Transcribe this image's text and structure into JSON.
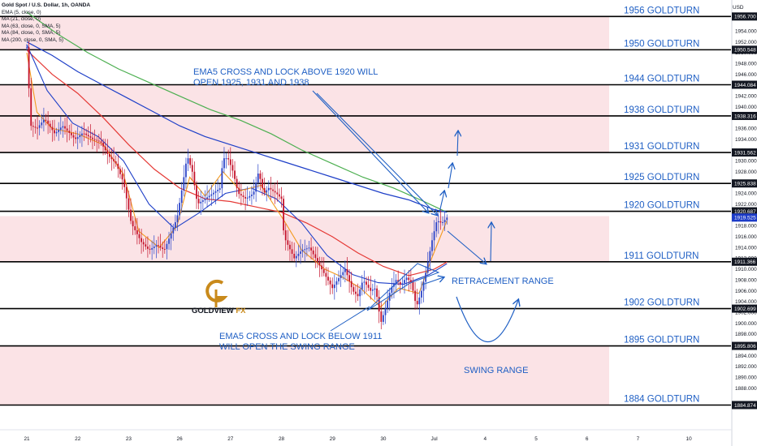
{
  "chart_data": {
    "type": "candlestick",
    "title": "Gold Spot / U.S. Dollar, 1h, OANDA",
    "legend": [
      "Gold Spot / U.S. Dollar, 1h, OANDA",
      "EMA (5, close, 0)",
      "MA (21, close, 0)",
      "MA (63, close, 0, SMA, 5)",
      "MA (84, close, 0, SMA, 5)",
      "MA (200, close, 0, SMA, 5)"
    ],
    "currency": "USD",
    "ylim": [
      1883,
      1957.5
    ],
    "y_ticks": [
      1888,
      1890,
      1892,
      1894,
      1896,
      1898,
      1900,
      1902,
      1904,
      1906,
      1908,
      1910,
      1912,
      1914,
      1916,
      1918,
      1920,
      1922,
      1924,
      1926,
      1928,
      1930,
      1932,
      1934,
      1936,
      1938,
      1940,
      1942,
      1944,
      1946,
      1948,
      1950,
      1952,
      1954
    ],
    "x_ticks": [
      "21",
      "22",
      "23",
      "26",
      "27",
      "28",
      "29",
      "30",
      "Jul",
      "4",
      "5",
      "6",
      "7",
      "10"
    ],
    "x_tick_positions": [
      0.0,
      1.0,
      2.0,
      3.0,
      4.0,
      5.0,
      6.0,
      7.0,
      8.0,
      9.0,
      10.0,
      11.0,
      12.0,
      13.0
    ],
    "levels": [
      {
        "value": 1956.7,
        "label": "1956 GOLDTURN"
      },
      {
        "value": 1950.548,
        "label": "1950 GOLDTURN"
      },
      {
        "value": 1944.084,
        "label": "1944 GOLDTURN"
      },
      {
        "value": 1938.316,
        "label": "1938 GOLDTURN"
      },
      {
        "value": 1931.562,
        "label": "1931 GOLDTURN"
      },
      {
        "value": 1925.838,
        "label": "1925 GOLDTURN"
      },
      {
        "value": 1920.687,
        "label": "1920 GOLDTURN"
      },
      {
        "value": 1911.366,
        "label": "1911 GOLDTURN"
      },
      {
        "value": 1902.699,
        "label": "1902 GOLDTURN"
      },
      {
        "value": 1895.806,
        "label": "1895 GOLDTURN"
      },
      {
        "value": 1884.874,
        "label": "1884 GOLDTURN"
      }
    ],
    "current_price": 1919.525,
    "price_tags": [
      "1956.700",
      "1950.548",
      "1944.084",
      "1938.316",
      "1931.562",
      "1925.838",
      "1920.687",
      "1919.525",
      "1911.366",
      "1902.699",
      "1895.806",
      "1884.874"
    ],
    "zones": [
      [
        1950.548,
        1956.7
      ],
      [
        1931.562,
        1944.084
      ],
      [
        1911.366,
        1919.8
      ],
      [
        1884.874,
        1895.806
      ]
    ],
    "price_path": [
      [
        0.0,
        1951.0
      ],
      [
        0.08,
        1936.5
      ],
      [
        0.2,
        1936.0
      ],
      [
        0.35,
        1937.8
      ],
      [
        0.55,
        1935.0
      ],
      [
        0.7,
        1936.5
      ],
      [
        0.95,
        1934.0
      ],
      [
        1.1,
        1935.2
      ],
      [
        1.3,
        1934.0
      ],
      [
        1.45,
        1933.5
      ],
      [
        1.6,
        1931.0
      ],
      [
        1.75,
        1929.5
      ],
      [
        1.9,
        1926.0
      ],
      [
        2.05,
        1918.5
      ],
      [
        2.25,
        1915.0
      ],
      [
        2.4,
        1913.5
      ],
      [
        2.55,
        1914.5
      ],
      [
        2.7,
        1913.5
      ],
      [
        2.85,
        1917.0
      ],
      [
        2.95,
        1919.5
      ],
      [
        3.05,
        1925.0
      ],
      [
        3.15,
        1931.0
      ],
      [
        3.25,
        1928.0
      ],
      [
        3.35,
        1922.0
      ],
      [
        3.5,
        1923.0
      ],
      [
        3.65,
        1924.0
      ],
      [
        3.8,
        1925.0
      ],
      [
        3.85,
        1930.5
      ],
      [
        3.95,
        1930.5
      ],
      [
        4.05,
        1928.0
      ],
      [
        4.15,
        1924.0
      ],
      [
        4.3,
        1923.0
      ],
      [
        4.45,
        1924.0
      ],
      [
        4.55,
        1928.0
      ],
      [
        4.65,
        1924.0
      ],
      [
        4.75,
        1925.0
      ],
      [
        4.9,
        1924.0
      ],
      [
        5.0,
        1923.0
      ],
      [
        5.05,
        1916.0
      ],
      [
        5.15,
        1914.0
      ],
      [
        5.25,
        1912.0
      ],
      [
        5.4,
        1913.5
      ],
      [
        5.55,
        1914.0
      ],
      [
        5.7,
        1911.5
      ],
      [
        5.85,
        1909.0
      ],
      [
        6.0,
        1906.5
      ],
      [
        6.1,
        1908.0
      ],
      [
        6.25,
        1910.0
      ],
      [
        6.4,
        1906.0
      ],
      [
        6.5,
        1905.0
      ],
      [
        6.6,
        1908.0
      ],
      [
        6.75,
        1906.0
      ],
      [
        6.85,
        1906.5
      ],
      [
        6.95,
        1900.0
      ],
      [
        7.05,
        1903.0
      ],
      [
        7.15,
        1906.5
      ],
      [
        7.25,
        1908.0
      ],
      [
        7.35,
        1907.0
      ],
      [
        7.45,
        1908.5
      ],
      [
        7.55,
        1907.5
      ],
      [
        7.65,
        1903.0
      ],
      [
        7.75,
        1906.0
      ],
      [
        7.85,
        1910.0
      ],
      [
        7.95,
        1915.0
      ],
      [
        8.05,
        1919.0
      ],
      [
        8.15,
        1918.5
      ],
      [
        8.25,
        1919.525
      ]
    ],
    "ema5_path": [
      [
        0.0,
        1950.0
      ],
      [
        0.2,
        1939.0
      ],
      [
        0.5,
        1936.0
      ],
      [
        1.0,
        1935.0
      ],
      [
        1.5,
        1933.0
      ],
      [
        1.9,
        1927.5
      ],
      [
        2.2,
        1917.0
      ],
      [
        2.6,
        1914.0
      ],
      [
        2.95,
        1918.0
      ],
      [
        3.2,
        1927.0
      ],
      [
        3.5,
        1923.5
      ],
      [
        3.85,
        1928.0
      ],
      [
        4.2,
        1924.5
      ],
      [
        4.6,
        1925.5
      ],
      [
        5.05,
        1919.0
      ],
      [
        5.4,
        1913.5
      ],
      [
        5.85,
        1910.0
      ],
      [
        6.2,
        1908.5
      ],
      [
        6.55,
        1906.5
      ],
      [
        6.95,
        1903.0
      ],
      [
        7.3,
        1906.5
      ],
      [
        7.7,
        1905.5
      ],
      [
        7.95,
        1912.0
      ],
      [
        8.25,
        1919.0
      ]
    ],
    "ma21_path": [
      [
        0.0,
        1951.5
      ],
      [
        0.4,
        1943.0
      ],
      [
        0.9,
        1937.0
      ],
      [
        1.4,
        1934.5
      ],
      [
        1.9,
        1930.0
      ],
      [
        2.4,
        1922.0
      ],
      [
        2.9,
        1917.5
      ],
      [
        3.4,
        1920.5
      ],
      [
        3.9,
        1924.0
      ],
      [
        4.4,
        1925.0
      ],
      [
        4.9,
        1923.0
      ],
      [
        5.4,
        1918.5
      ],
      [
        5.9,
        1912.5
      ],
      [
        6.4,
        1909.0
      ],
      [
        6.9,
        1907.5
      ],
      [
        7.4,
        1907.2
      ],
      [
        7.9,
        1909.0
      ],
      [
        8.25,
        1911.0
      ]
    ],
    "ma63_path": [
      [
        0.0,
        1950.5
      ],
      [
        0.5,
        1946.0
      ],
      [
        1.0,
        1942.5
      ],
      [
        1.5,
        1938.0
      ],
      [
        2.0,
        1933.0
      ],
      [
        2.5,
        1928.5
      ],
      [
        3.0,
        1925.0
      ],
      [
        3.5,
        1923.0
      ],
      [
        4.0,
        1922.5
      ],
      [
        4.5,
        1921.5
      ],
      [
        5.0,
        1920.5
      ],
      [
        5.5,
        1918.5
      ],
      [
        6.0,
        1916.0
      ],
      [
        6.5,
        1913.0
      ],
      [
        7.0,
        1910.5
      ],
      [
        7.5,
        1908.8
      ],
      [
        8.0,
        1910.0
      ],
      [
        8.25,
        1911.3
      ]
    ],
    "ma84_path": [
      [
        0.0,
        1952.0
      ],
      [
        0.5,
        1949.5
      ],
      [
        1.0,
        1946.5
      ],
      [
        1.5,
        1944.0
      ],
      [
        2.0,
        1941.5
      ],
      [
        2.5,
        1939.0
      ],
      [
        3.0,
        1936.5
      ],
      [
        3.5,
        1934.5
      ],
      [
        4.0,
        1933.0
      ],
      [
        4.5,
        1931.5
      ],
      [
        5.0,
        1930.0
      ],
      [
        5.5,
        1928.5
      ],
      [
        6.0,
        1927.0
      ],
      [
        6.5,
        1925.5
      ],
      [
        7.0,
        1924.0
      ],
      [
        7.5,
        1922.8
      ],
      [
        8.0,
        1921.0
      ],
      [
        8.25,
        1920.5
      ]
    ],
    "ma200_path": [
      [
        0.0,
        1957.5
      ],
      [
        0.6,
        1953.5
      ],
      [
        1.2,
        1950.0
      ],
      [
        1.8,
        1947.0
      ],
      [
        2.4,
        1944.5
      ],
      [
        3.0,
        1942.0
      ],
      [
        3.6,
        1939.5
      ],
      [
        4.2,
        1937.5
      ],
      [
        4.8,
        1935.0
      ],
      [
        5.4,
        1932.0
      ],
      [
        6.0,
        1929.5
      ],
      [
        6.6,
        1927.0
      ],
      [
        7.2,
        1925.0
      ],
      [
        7.8,
        1922.5
      ],
      [
        8.25,
        1920.5
      ]
    ],
    "annotations": [
      {
        "lines": [
          "EMA5 CROSS AND LOCK ABOVE 1920 WILL",
          "OPEN 1925, 1931 AND 1938"
        ]
      },
      {
        "lines": [
          "EMA5 CROSS AND LOCK BELOW 1911",
          "WILL OPEN THE SWING RANGE"
        ]
      },
      {
        "lines": [
          "RETRACEMENT RANGE"
        ]
      },
      {
        "lines": [
          "SWING RANGE"
        ]
      }
    ],
    "logo_text_a": "GOLDVIEW",
    "logo_text_b": " FX",
    "colors": {
      "level_line": "#000000",
      "zone_fill": "#fbe3e6",
      "up": "#2b44c9",
      "down": "#c4122b",
      "ema5": "#f39a1f",
      "ma21": "#1e3fc8",
      "ma63": "#e53935",
      "ma84": "#1e3fc8",
      "ma200": "#4caf50",
      "annotation": "#1f5fc4",
      "price_tag_bg": "#131722",
      "current_tag_bg": "#1c3bc7"
    }
  }
}
